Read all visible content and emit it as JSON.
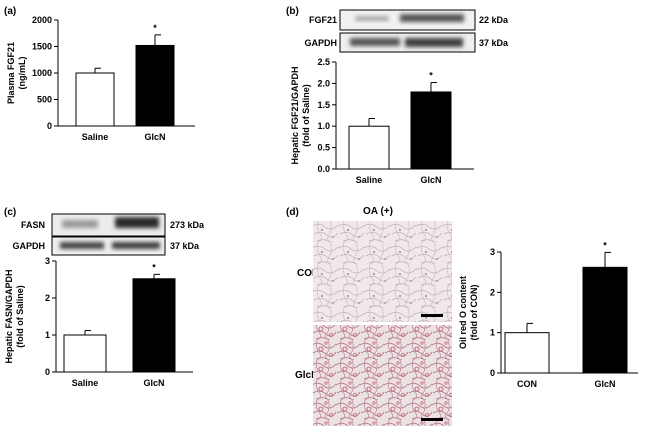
{
  "panels": {
    "a": {
      "label": "(a)"
    },
    "b": {
      "label": "(b)",
      "blot": {
        "rows": [
          {
            "name": "FGF21",
            "size": "22 kDa"
          },
          {
            "name": "GAPDH",
            "size": "37 kDa"
          }
        ]
      }
    },
    "c": {
      "label": "(c)",
      "blot": {
        "rows": [
          {
            "name": "FASN",
            "size": "273 kDa"
          },
          {
            "name": "GAPDH",
            "size": "37 kDa"
          }
        ]
      }
    },
    "d": {
      "label": "(d)",
      "image_title": "OA (+)",
      "row_labels": [
        "CON",
        "GlcN"
      ]
    }
  },
  "chart_data": [
    {
      "id": "a",
      "type": "bar",
      "categories": [
        "Saline",
        "GlcN"
      ],
      "values": [
        1000,
        1520
      ],
      "errors": [
        90,
        200
      ],
      "fills": [
        "#ffffff",
        "#000000"
      ],
      "significance": [
        "",
        "*"
      ],
      "ylabel": [
        "Plasma FGF21",
        "(ng/mL)"
      ],
      "ylim": [
        0,
        2000
      ],
      "yticks": [
        "0",
        "500",
        "1000",
        "1500",
        "2000"
      ],
      "ytick_values": [
        0,
        500,
        1000,
        1500,
        2000
      ]
    },
    {
      "id": "b",
      "type": "bar",
      "categories": [
        "Saline",
        "GlcN"
      ],
      "values": [
        1.0,
        1.8
      ],
      "errors": [
        0.18,
        0.22
      ],
      "fills": [
        "#ffffff",
        "#000000"
      ],
      "significance": [
        "",
        "*"
      ],
      "ylabel": [
        "Hepatic FGF21/GAPDH",
        "(fold of Saline)"
      ],
      "ylim": [
        0,
        2.5
      ],
      "yticks": [
        "0.0",
        "0.5",
        "1.0",
        "1.5",
        "2.0",
        "2.5"
      ],
      "ytick_values": [
        0,
        0.5,
        1,
        1.5,
        2,
        2.5
      ]
    },
    {
      "id": "c",
      "type": "bar",
      "categories": [
        "Saline",
        "GlcN"
      ],
      "values": [
        1.0,
        2.52
      ],
      "errors": [
        0.12,
        0.12
      ],
      "fills": [
        "#ffffff",
        "#000000"
      ],
      "significance": [
        "",
        "*"
      ],
      "ylabel": [
        "Hepatic FASN/GAPDH",
        "(fold of Saline)"
      ],
      "ylim": [
        0,
        3
      ],
      "yticks": [
        "0",
        "1",
        "2",
        "3"
      ],
      "ytick_values": [
        0,
        1,
        2,
        3
      ]
    },
    {
      "id": "d",
      "type": "bar",
      "categories": [
        "CON",
        "GlcN"
      ],
      "values": [
        1.0,
        2.62
      ],
      "errors": [
        0.23,
        0.37
      ],
      "fills": [
        "#ffffff",
        "#000000"
      ],
      "significance": [
        "",
        "*"
      ],
      "ylabel": [
        "Oil red O content",
        "(fold of CON)"
      ],
      "ylim": [
        0,
        3
      ],
      "yticks": [
        "0",
        "1",
        "2",
        "3"
      ],
      "ytick_values": [
        0,
        1,
        2,
        3
      ]
    }
  ]
}
